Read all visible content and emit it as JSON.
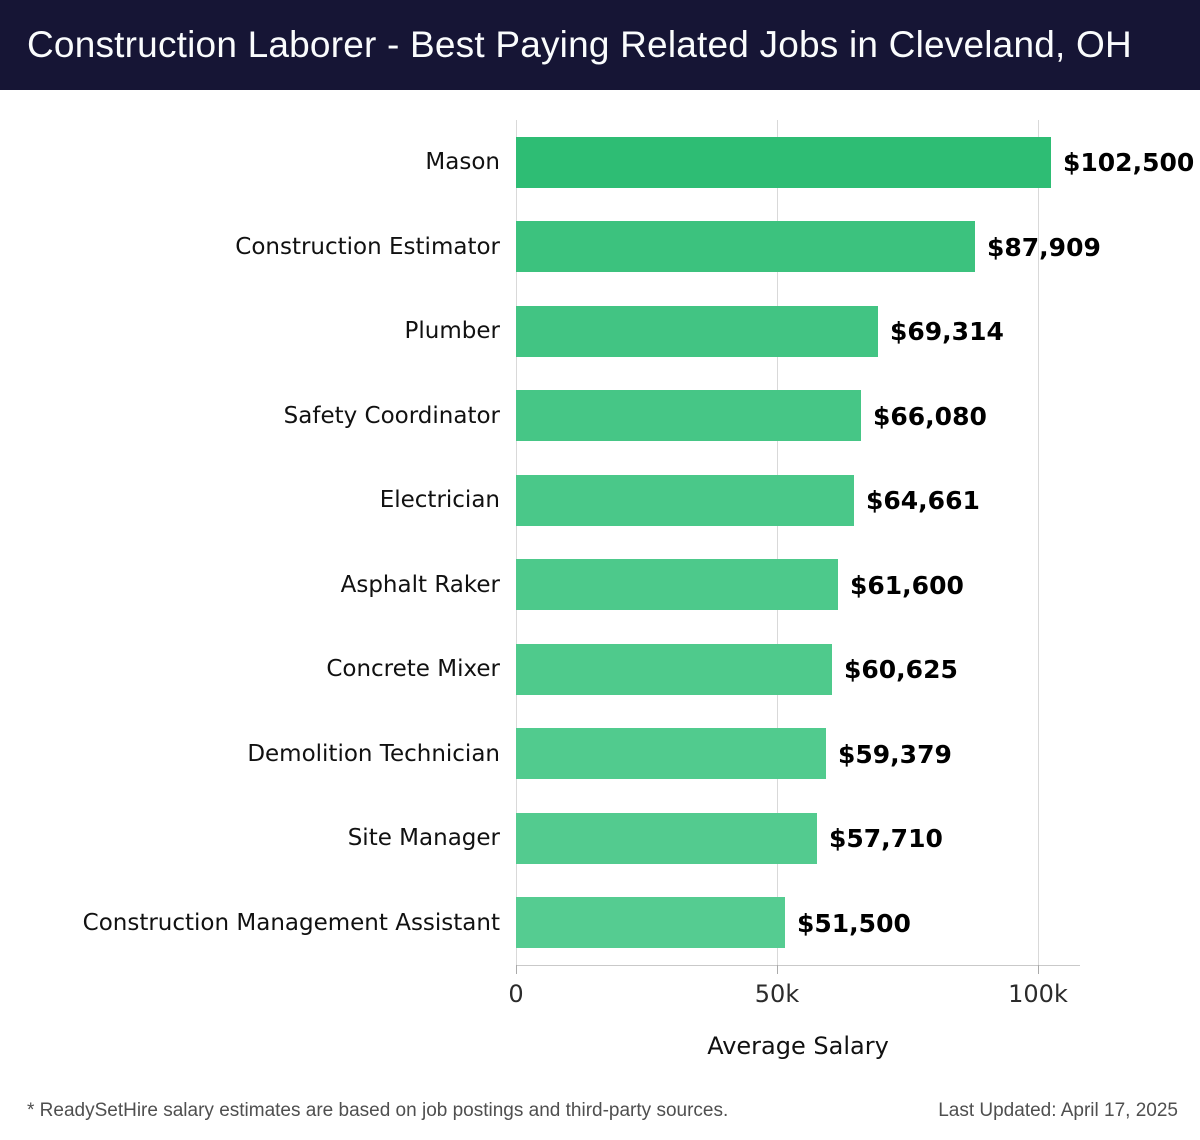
{
  "header": {
    "title": "Construction Laborer - Best Paying Related Jobs in Cleveland, OH",
    "bg_color": "#161535",
    "text_color": "#fafcfd"
  },
  "chart_data": {
    "type": "bar",
    "orientation": "horizontal",
    "title": "Construction Laborer - Best Paying Related Jobs in Cleveland, OH",
    "categories": [
      "Mason",
      "Construction Estimator",
      "Plumber",
      "Safety Coordinator",
      "Electrician",
      "Asphalt Raker",
      "Concrete Mixer",
      "Demolition Technician",
      "Site Manager",
      "Construction Management Assistant"
    ],
    "values": [
      102500,
      87909,
      69314,
      66080,
      64661,
      61600,
      60625,
      59379,
      57710,
      51500
    ],
    "value_labels": [
      "$102,500",
      "$87,909",
      "$69,314",
      "$66,080",
      "$64,661",
      "$61,600",
      "$60,625",
      "$59,379",
      "$57,710",
      "$51,500"
    ],
    "bar_colors": [
      "#2ebd74",
      "#3cc27e",
      "#42c483",
      "#46c686",
      "#4ac889",
      "#4dc98b",
      "#4fca8c",
      "#51cb8e",
      "#53cb8f",
      "#55cc91"
    ],
    "xlabel": "Average Salary",
    "ylabel": "",
    "x_ticks": [
      "0",
      "50k",
      "100k"
    ],
    "x_tick_values": [
      0,
      50000,
      100000
    ],
    "xlim": [
      0,
      108000
    ],
    "grid": true,
    "legend": false,
    "gridline_color": "#d9d9d9"
  },
  "footer": {
    "note": "* ReadySetHire salary estimates are based on job postings and third-party sources.",
    "last_updated": "Last Updated: April 17, 2025"
  }
}
